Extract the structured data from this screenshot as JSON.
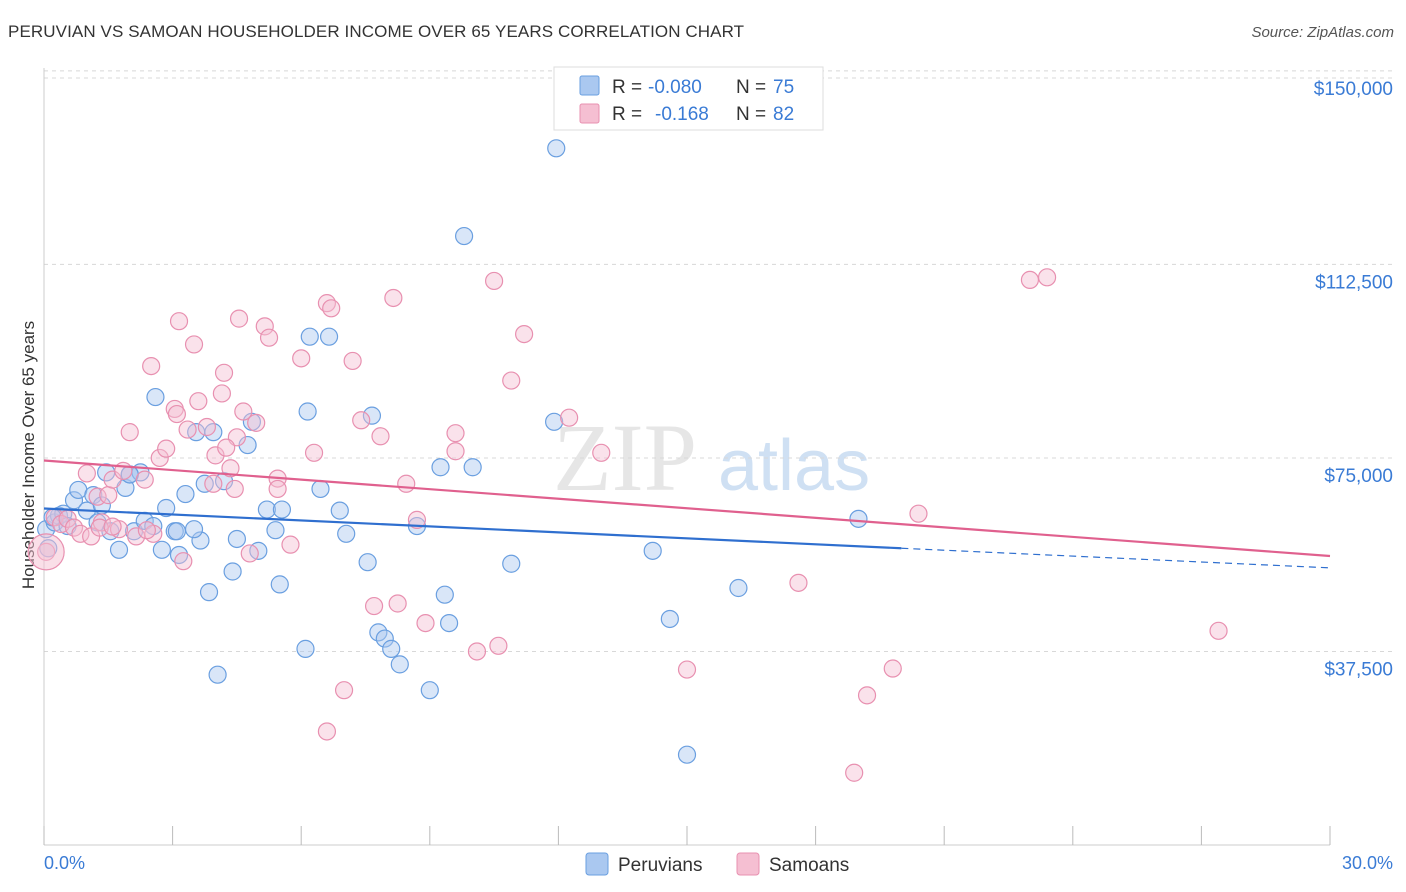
{
  "header": {
    "title": "PERUVIAN VS SAMOAN HOUSEHOLDER INCOME OVER 65 YEARS CORRELATION CHART",
    "source": "Source: ZipAtlas.com"
  },
  "watermark": {
    "zip": "ZIP",
    "atlas": "atlas"
  },
  "colors": {
    "peruvians": "#6a9fe0",
    "peruvians_fill": "#aac8f0",
    "peruvians_line": "#2f6fcf",
    "samoans": "#e890b0",
    "samoans_fill": "#f5bfd2",
    "samoans_line": "#e0608e",
    "tick_text": "#3a7bd5",
    "grid": "#d8d8d8"
  },
  "legend": {
    "r_label": "R =",
    "n_label": "N =",
    "peruvians": {
      "r": "-0.080",
      "n": "75"
    },
    "samoans": {
      "r": "-0.168",
      "n": "82"
    }
  },
  "chart_data": {
    "type": "scatter",
    "title": "PERUVIAN VS SAMOAN HOUSEHOLDER INCOME OVER 65 YEARS CORRELATION CHART",
    "xlabel": "",
    "ylabel": "Householder Income Over 65 years",
    "xlim": [
      0,
      30
    ],
    "ylim": [
      0,
      152500
    ],
    "x_ticks": [
      {
        "value": 0,
        "label": "0.0%"
      },
      {
        "value": 30,
        "label": "30.0%"
      }
    ],
    "y_ticks": [
      {
        "value": 37500,
        "label": "$37,500"
      },
      {
        "value": 75000,
        "label": "$75,000"
      },
      {
        "value": 112500,
        "label": "$112,500"
      },
      {
        "value": 150000,
        "label": "$150,000"
      }
    ],
    "grid": true,
    "legend_position": "top-center",
    "series": [
      {
        "name": "Peruvians",
        "trend": {
          "x0": 0,
          "y0": 65200,
          "x1": 20,
          "y1": 57500,
          "x_dashed_end": 30,
          "y_dashed_end": 53700
        },
        "points": [
          [
            0.05,
            61200
          ],
          [
            0.1,
            57500
          ],
          [
            0.25,
            62500
          ],
          [
            0.35,
            63800
          ],
          [
            0.45,
            64200
          ],
          [
            0.55,
            61800
          ],
          [
            0.7,
            66800
          ],
          [
            0.8,
            68800
          ],
          [
            1.0,
            64800
          ],
          [
            1.15,
            67800
          ],
          [
            1.25,
            62500
          ],
          [
            1.35,
            65800
          ],
          [
            1.45,
            72200
          ],
          [
            1.55,
            60800
          ],
          [
            1.75,
            57200
          ],
          [
            1.9,
            69200
          ],
          [
            2.0,
            71800
          ],
          [
            2.1,
            60800
          ],
          [
            2.25,
            72200
          ],
          [
            2.35,
            62800
          ],
          [
            2.55,
            61800
          ],
          [
            2.6,
            86800
          ],
          [
            2.75,
            57200
          ],
          [
            2.85,
            65300
          ],
          [
            3.05,
            60800
          ],
          [
            3.15,
            56200
          ],
          [
            3.3,
            68000
          ],
          [
            3.55,
            80000
          ],
          [
            3.65,
            59000
          ],
          [
            3.75,
            70000
          ],
          [
            3.85,
            49000
          ],
          [
            3.95,
            80000
          ],
          [
            4.2,
            70500
          ],
          [
            4.4,
            53000
          ],
          [
            4.5,
            59300
          ],
          [
            4.75,
            77500
          ],
          [
            4.85,
            82000
          ],
          [
            5.0,
            57000
          ],
          [
            5.4,
            61000
          ],
          [
            5.5,
            50500
          ],
          [
            5.2,
            65000
          ],
          [
            5.55,
            65000
          ],
          [
            6.15,
            84000
          ],
          [
            6.2,
            98500
          ],
          [
            6.45,
            69000
          ],
          [
            6.65,
            98500
          ],
          [
            6.9,
            64800
          ],
          [
            7.05,
            60300
          ],
          [
            7.65,
            83200
          ],
          [
            7.55,
            54800
          ],
          [
            7.8,
            41200
          ],
          [
            7.95,
            40000
          ],
          [
            8.1,
            38000
          ],
          [
            8.3,
            35000
          ],
          [
            8.7,
            61800
          ],
          [
            9.25,
            73200
          ],
          [
            9.35,
            48500
          ],
          [
            9.45,
            43000
          ],
          [
            9.8,
            118000
          ],
          [
            10.0,
            73200
          ],
          [
            10.9,
            54500
          ],
          [
            11.9,
            82000
          ],
          [
            11.95,
            135000
          ],
          [
            14.2,
            57000
          ],
          [
            14.6,
            43800
          ],
          [
            15.0,
            17500
          ],
          [
            16.2,
            49800
          ],
          [
            19.0,
            63200
          ],
          [
            3.1,
            60800
          ],
          [
            4.05,
            33000
          ],
          [
            6.1,
            38000
          ],
          [
            9.0,
            30000
          ],
          [
            2.0,
            71800
          ],
          [
            3.5,
            61200
          ],
          [
            0.2,
            63500
          ]
        ]
      },
      {
        "name": "Samoans",
        "trend": {
          "x0": 0,
          "y0": 74500,
          "x1": 30,
          "y1": 56000
        },
        "points": [
          [
            0.05,
            56800
          ],
          [
            0.25,
            63500
          ],
          [
            0.4,
            62200
          ],
          [
            0.55,
            63200
          ],
          [
            0.7,
            61500
          ],
          [
            0.85,
            60300
          ],
          [
            1.0,
            72000
          ],
          [
            1.1,
            59800
          ],
          [
            1.25,
            67500
          ],
          [
            1.35,
            62500
          ],
          [
            1.5,
            67800
          ],
          [
            1.6,
            70800
          ],
          [
            1.75,
            61200
          ],
          [
            1.85,
            72500
          ],
          [
            2.0,
            80000
          ],
          [
            2.15,
            59800
          ],
          [
            2.35,
            70800
          ],
          [
            2.5,
            92800
          ],
          [
            2.55,
            60300
          ],
          [
            2.7,
            75000
          ],
          [
            2.85,
            76800
          ],
          [
            3.05,
            84500
          ],
          [
            3.15,
            101500
          ],
          [
            3.25,
            55000
          ],
          [
            3.35,
            80500
          ],
          [
            3.5,
            97000
          ],
          [
            3.6,
            86000
          ],
          [
            3.8,
            81000
          ],
          [
            3.95,
            70000
          ],
          [
            4.0,
            75500
          ],
          [
            4.15,
            87500
          ],
          [
            4.2,
            91500
          ],
          [
            4.35,
            73000
          ],
          [
            4.45,
            69000
          ],
          [
            4.5,
            79000
          ],
          [
            4.55,
            102000
          ],
          [
            4.65,
            84000
          ],
          [
            4.8,
            56500
          ],
          [
            4.95,
            81800
          ],
          [
            5.15,
            100500
          ],
          [
            5.25,
            98300
          ],
          [
            5.45,
            71000
          ],
          [
            5.75,
            58200
          ],
          [
            6.0,
            94300
          ],
          [
            6.3,
            76000
          ],
          [
            6.6,
            105000
          ],
          [
            6.7,
            104000
          ],
          [
            7.0,
            30000
          ],
          [
            7.2,
            93800
          ],
          [
            7.4,
            82300
          ],
          [
            7.7,
            46300
          ],
          [
            7.85,
            79200
          ],
          [
            8.15,
            106000
          ],
          [
            8.25,
            46800
          ],
          [
            8.45,
            70000
          ],
          [
            8.7,
            63000
          ],
          [
            8.9,
            43000
          ],
          [
            9.6,
            76300
          ],
          [
            10.1,
            37500
          ],
          [
            10.5,
            109300
          ],
          [
            10.6,
            38600
          ],
          [
            10.9,
            90000
          ],
          [
            11.2,
            99000
          ],
          [
            12.25,
            82800
          ],
          [
            13.0,
            76000
          ],
          [
            15.0,
            34000
          ],
          [
            17.6,
            50800
          ],
          [
            18.9,
            14000
          ],
          [
            19.2,
            29000
          ],
          [
            19.8,
            34200
          ],
          [
            20.4,
            64200
          ],
          [
            23.0,
            109500
          ],
          [
            23.4,
            110000
          ],
          [
            27.4,
            41500
          ],
          [
            1.3,
            61500
          ],
          [
            6.6,
            22000
          ],
          [
            4.25,
            77000
          ],
          [
            2.4,
            61000
          ],
          [
            1.6,
            61700
          ],
          [
            3.1,
            83500
          ],
          [
            5.45,
            69000
          ],
          [
            9.6,
            79800
          ]
        ]
      }
    ]
  },
  "axis": {
    "y_title": "Householder Income Over 65 years",
    "x_min_label": "0.0%",
    "x_max_label": "30.0%"
  },
  "bottom_legend": {
    "peruvians": "Peruvians",
    "samoans": "Samoans"
  }
}
